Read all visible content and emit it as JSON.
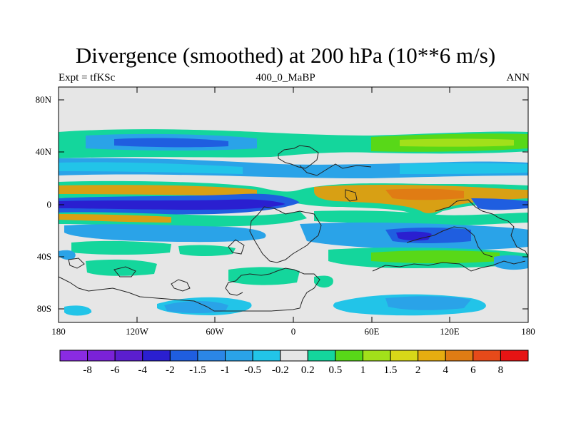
{
  "title": "Divergence (smoothed) at 200 hPa (10**6 m/s)",
  "subtitle_left": "Expt = tfKSc",
  "subtitle_center": "400_0_MaBP",
  "subtitle_right": "ANN",
  "lat_ticks": [
    "80N",
    "40N",
    "0",
    "40S",
    "80S"
  ],
  "lon_ticks": [
    "180",
    "120W",
    "60W",
    "0",
    "60E",
    "120E",
    "180"
  ],
  "colorbar": {
    "colors": [
      "#8a2be2",
      "#7a22d8",
      "#5b1ecf",
      "#2a1fd0",
      "#1f5ee0",
      "#2b86e6",
      "#2aa3e8",
      "#22c4e8",
      "#e6e6e6",
      "#14d69c",
      "#58d818",
      "#a2e01a",
      "#d8d818",
      "#e6ad10",
      "#e07c14",
      "#e64a1a",
      "#e61414"
    ],
    "labels": [
      "-8",
      "-6",
      "-4",
      "-2",
      "-1.5",
      "-1",
      "-0.5",
      "-0.2",
      "0.2",
      "0.5",
      "1",
      "1.5",
      "2",
      "4",
      "6",
      "8"
    ]
  },
  "palette": {
    "background": "#e6e6e6",
    "pos_weak": "#14d69c",
    "pos_mid": "#58d818",
    "pos_mid2": "#a2e01a",
    "pos_strong": "#d8a014",
    "pos_orange": "#e07c14",
    "neg_weak": "#22c4e8",
    "neg_mid": "#2aa3e8",
    "neg_strong": "#1f5ee0",
    "neg_deep": "#2a1fd0"
  }
}
